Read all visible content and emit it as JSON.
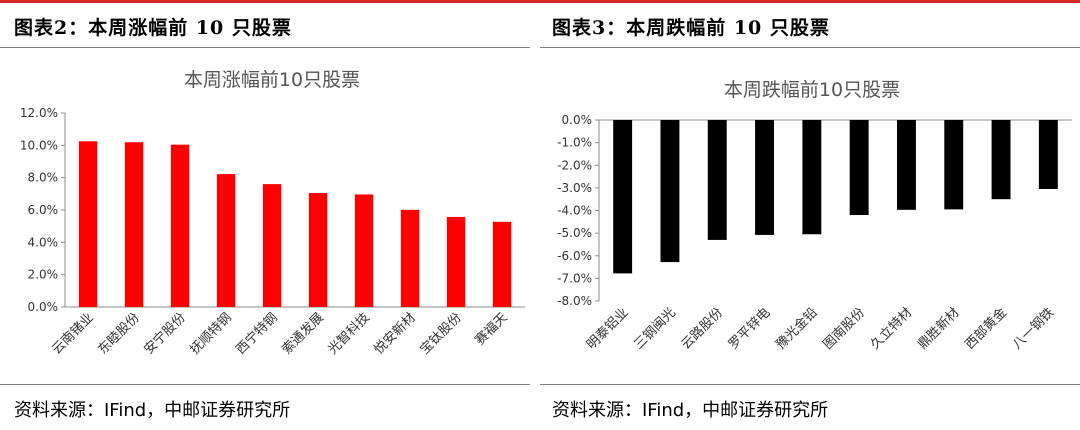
{
  "figures": [
    {
      "heading": "图表2：本周涨幅前 10 只股票",
      "source": "资料来源：IFind，中邮证券研究所",
      "chart_data": {
        "type": "bar",
        "title": "本周涨幅前10只股票",
        "categories": [
          "云南锗业",
          "东睦股份",
          "安宁股份",
          "抚顺特钢",
          "西宁特钢",
          "索通发展",
          "光智科技",
          "悦安新材",
          "宝钛股份",
          "赛福天"
        ],
        "values": [
          0.1025,
          0.1019,
          0.1004,
          0.0822,
          0.076,
          0.0705,
          0.0696,
          0.0601,
          0.0557,
          0.0527
        ],
        "yticks": [
          "0.0%",
          "2.0%",
          "4.0%",
          "6.0%",
          "8.0%",
          "10.0%",
          "12.0%"
        ],
        "ylim": [
          0,
          0.12
        ],
        "bar_color": "#ff0000",
        "grid": false
      }
    },
    {
      "heading": "图表3：本周跌幅前 10 只股票",
      "source": "资料来源：IFind，中邮证券研究所",
      "chart_data": {
        "type": "bar",
        "title": "本周跌幅前10只股票",
        "categories": [
          "明泰铝业",
          "三钢闽光",
          "云路股份",
          "罗平锌电",
          "豫光金铅",
          "图南股份",
          "久立特材",
          "鼎胜新材",
          "西部黄金",
          "八一钢铁"
        ],
        "values": [
          -0.0678,
          -0.0628,
          -0.053,
          -0.0508,
          -0.0505,
          -0.042,
          -0.0397,
          -0.0395,
          -0.035,
          -0.0305
        ],
        "yticks": [
          "0.0%",
          "-1.0%",
          "-2.0%",
          "-3.0%",
          "-4.0%",
          "-5.0%",
          "-6.0%",
          "-7.0%",
          "-8.0%"
        ],
        "ylim": [
          -0.08,
          0
        ],
        "bar_color": "#000000",
        "grid": false
      }
    }
  ]
}
